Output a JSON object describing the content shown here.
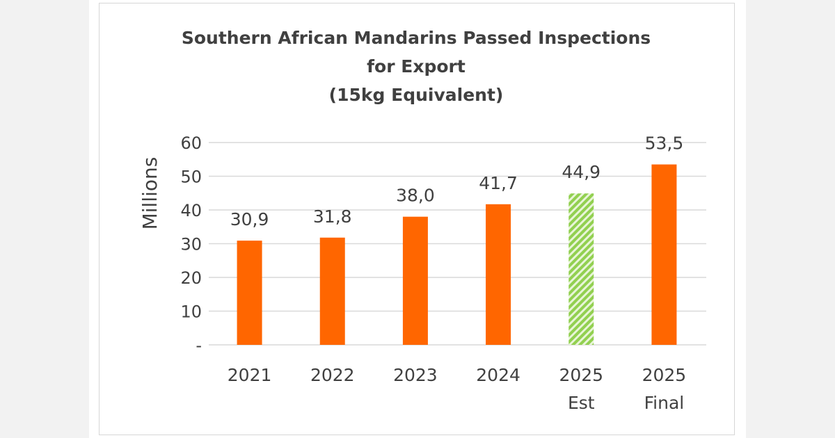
{
  "chart_data": {
    "type": "bar",
    "title": [
      "Southern African Mandarins Passed Inspections",
      "for Export",
      "(15kg Equivalent)"
    ],
    "ylabel": "Millions",
    "xlabel": "",
    "categories": [
      [
        "2021"
      ],
      [
        "2022"
      ],
      [
        "2023"
      ],
      [
        "2024"
      ],
      [
        "2025",
        "Est"
      ],
      [
        "2025",
        "Final"
      ]
    ],
    "values": [
      30.9,
      31.8,
      38.0,
      41.7,
      44.9,
      53.5
    ],
    "data_labels": [
      "30,9",
      "31,8",
      "38,0",
      "41,7",
      "44,9",
      "53,5"
    ],
    "bar_styles": [
      "solid",
      "solid",
      "solid",
      "solid",
      "hatched",
      "solid"
    ],
    "ylim": [
      0,
      60
    ],
    "yticks": [
      0,
      10,
      20,
      30,
      40,
      50,
      60
    ],
    "ytick_labels": [
      "-",
      "10",
      "20",
      "30",
      "40",
      "50",
      "60"
    ],
    "grid": true,
    "legend": "none",
    "colors": {
      "bar": "#ff6600",
      "estimate": "#92d050",
      "grid": "#d9d9d9",
      "text": "#404040"
    }
  }
}
